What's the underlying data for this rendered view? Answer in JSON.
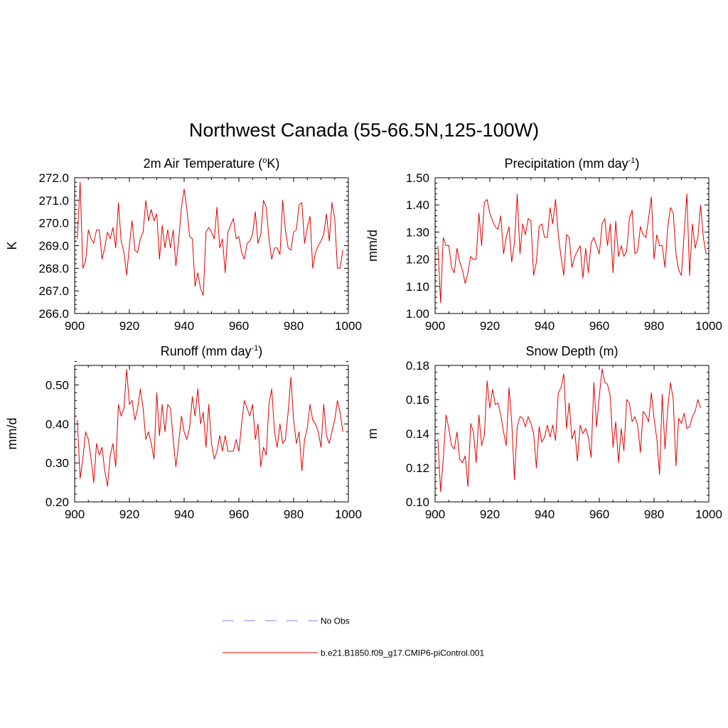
{
  "figure": {
    "title": "Northwest Canada (55-66.5N,125-100W)"
  },
  "legend": [
    {
      "label": "No Obs",
      "color": "#9999ff",
      "dash": "dashed"
    },
    {
      "label": "b.e21.B1850.f09_g17.CMIP6-piControl.001",
      "color": "#ff3333",
      "dash": "solid"
    }
  ],
  "chart_data": [
    {
      "type": "line",
      "title": "2m Air Temperature (",
      "title_sup": "o",
      "title_end": "K)",
      "ylabel": "K",
      "xlim": [
        900,
        1000
      ],
      "ylim": [
        266.0,
        272.0
      ],
      "xticks": [
        "900",
        "920",
        "940",
        "960",
        "980",
        "1000"
      ],
      "yticks": [
        "266.0",
        "267.0",
        "268.0",
        "269.0",
        "270.0",
        "271.0",
        "272.0"
      ],
      "line_color": "#e00000",
      "x_start": 901,
      "values": [
        269.3,
        271.8,
        268.0,
        268.3,
        269.7,
        269.3,
        269.1,
        269.7,
        269.7,
        268.4,
        268.9,
        269.6,
        269.3,
        269.8,
        268.9,
        270.9,
        269.2,
        268.7,
        267.7,
        269.0,
        270.1,
        268.8,
        268.7,
        269.3,
        269.6,
        271.0,
        270.1,
        270.6,
        270.1,
        270.4,
        268.4,
        269.9,
        268.9,
        269.7,
        268.9,
        269.7,
        268.1,
        269.2,
        270.7,
        271.5,
        270.6,
        269.4,
        269.3,
        267.2,
        267.8,
        267.1,
        266.8,
        269.6,
        269.8,
        269.6,
        269.3,
        270.7,
        268.9,
        269.3,
        267.8,
        269.6,
        269.9,
        270.2,
        269.3,
        269.4,
        268.7,
        268.4,
        269.1,
        269.2,
        269.5,
        270.5,
        269.1,
        269.5,
        271.0,
        270.7,
        269.3,
        268.4,
        268.9,
        268.9,
        268.6,
        271.0,
        269.7,
        268.9,
        268.8,
        269.6,
        269.7,
        270.8,
        270.9,
        269.1,
        269.8,
        270.3,
        268.0,
        268.7,
        269.0,
        269.2,
        269.5,
        270.4,
        269.2,
        270.9,
        270.2,
        268.0,
        268.0,
        268.8
      ]
    },
    {
      "type": "line",
      "title": "Precipitation (mm day",
      "title_sup": "-1",
      "title_end": ")",
      "ylabel": "mm/d",
      "xlim": [
        900,
        1000
      ],
      "ylim": [
        1.0,
        1.5
      ],
      "xticks": [
        "900",
        "920",
        "940",
        "960",
        "980",
        "1000"
      ],
      "yticks": [
        "1.00",
        "1.10",
        "1.20",
        "1.30",
        "1.40",
        "1.50"
      ],
      "line_color": "#e00000",
      "x_start": 901,
      "values": [
        1.25,
        1.04,
        1.28,
        1.25,
        1.25,
        1.17,
        1.15,
        1.24,
        1.19,
        1.16,
        1.11,
        1.15,
        1.21,
        1.2,
        1.2,
        1.37,
        1.25,
        1.41,
        1.42,
        1.37,
        1.34,
        1.32,
        1.31,
        1.36,
        1.22,
        1.28,
        1.32,
        1.19,
        1.26,
        1.44,
        1.22,
        1.33,
        1.29,
        1.35,
        1.34,
        1.14,
        1.19,
        1.32,
        1.33,
        1.28,
        1.28,
        1.39,
        1.33,
        1.42,
        1.29,
        1.21,
        1.14,
        1.29,
        1.28,
        1.17,
        1.21,
        1.23,
        1.25,
        1.13,
        1.24,
        1.15,
        1.26,
        1.28,
        1.25,
        1.22,
        1.33,
        1.35,
        1.25,
        1.33,
        1.15,
        1.34,
        1.21,
        1.25,
        1.21,
        1.23,
        1.35,
        1.38,
        1.22,
        1.23,
        1.32,
        1.29,
        1.28,
        1.35,
        1.43,
        1.2,
        1.29,
        1.25,
        1.25,
        1.17,
        1.32,
        1.39,
        1.37,
        1.22,
        1.16,
        1.14,
        1.3,
        1.44,
        1.14,
        1.33,
        1.24,
        1.28,
        1.4,
        1.28,
        1.22
      ]
    },
    {
      "type": "line",
      "title": "Runoff (mm day",
      "title_sup": "-1",
      "title_end": ")",
      "ylabel": "mm/d",
      "xlim": [
        900,
        1000
      ],
      "ylim": [
        0.2,
        0.55
      ],
      "xticks": [
        "900",
        "920",
        "940",
        "960",
        "980",
        "1000"
      ],
      "yticks": [
        "0.20",
        "0.30",
        "0.40",
        "0.50"
      ],
      "line_color": "#e00000",
      "x_start": 901,
      "values": [
        0.41,
        0.26,
        0.31,
        0.38,
        0.36,
        0.31,
        0.25,
        0.35,
        0.32,
        0.34,
        0.28,
        0.24,
        0.32,
        0.35,
        0.29,
        0.45,
        0.42,
        0.44,
        0.54,
        0.45,
        0.46,
        0.41,
        0.44,
        0.49,
        0.44,
        0.36,
        0.38,
        0.35,
        0.31,
        0.48,
        0.37,
        0.45,
        0.38,
        0.45,
        0.44,
        0.36,
        0.29,
        0.35,
        0.42,
        0.38,
        0.36,
        0.39,
        0.47,
        0.42,
        0.49,
        0.4,
        0.43,
        0.34,
        0.45,
        0.35,
        0.31,
        0.33,
        0.37,
        0.33,
        0.37,
        0.33,
        0.33,
        0.33,
        0.36,
        0.33,
        0.4,
        0.46,
        0.44,
        0.42,
        0.45,
        0.36,
        0.4,
        0.29,
        0.34,
        0.32,
        0.45,
        0.49,
        0.38,
        0.34,
        0.4,
        0.35,
        0.36,
        0.43,
        0.52,
        0.41,
        0.35,
        0.38,
        0.28,
        0.36,
        0.39,
        0.45,
        0.41,
        0.4,
        0.38,
        0.34,
        0.45,
        0.37,
        0.35,
        0.38,
        0.41,
        0.46,
        0.43,
        0.38
      ]
    },
    {
      "type": "line",
      "title": "Snow Depth (m)",
      "title_sup": "",
      "title_end": "",
      "ylabel": "m",
      "xlim": [
        900,
        1000
      ],
      "ylim": [
        0.1,
        0.18
      ],
      "xticks": [
        "900",
        "920",
        "940",
        "960",
        "980",
        "1000"
      ],
      "yticks": [
        "0.10",
        "0.12",
        "0.14",
        "0.16",
        "0.18"
      ],
      "line_color": "#e00000",
      "x_start": 901,
      "values": [
        0.137,
        0.106,
        0.125,
        0.151,
        0.143,
        0.133,
        0.131,
        0.141,
        0.125,
        0.123,
        0.127,
        0.109,
        0.146,
        0.141,
        0.123,
        0.151,
        0.133,
        0.139,
        0.171,
        0.155,
        0.166,
        0.157,
        0.158,
        0.151,
        0.141,
        0.133,
        0.167,
        0.147,
        0.113,
        0.144,
        0.15,
        0.149,
        0.144,
        0.15,
        0.146,
        0.14,
        0.12,
        0.144,
        0.135,
        0.138,
        0.145,
        0.138,
        0.145,
        0.136,
        0.164,
        0.167,
        0.175,
        0.143,
        0.158,
        0.137,
        0.142,
        0.124,
        0.145,
        0.14,
        0.143,
        0.138,
        0.126,
        0.17,
        0.144,
        0.162,
        0.178,
        0.17,
        0.169,
        0.162,
        0.132,
        0.147,
        0.123,
        0.143,
        0.13,
        0.16,
        0.158,
        0.147,
        0.15,
        0.145,
        0.129,
        0.153,
        0.151,
        0.147,
        0.164,
        0.149,
        0.137,
        0.116,
        0.163,
        0.131,
        0.155,
        0.17,
        0.16,
        0.121,
        0.149,
        0.146,
        0.152,
        0.143,
        0.144,
        0.15,
        0.153,
        0.16,
        0.155
      ]
    }
  ]
}
